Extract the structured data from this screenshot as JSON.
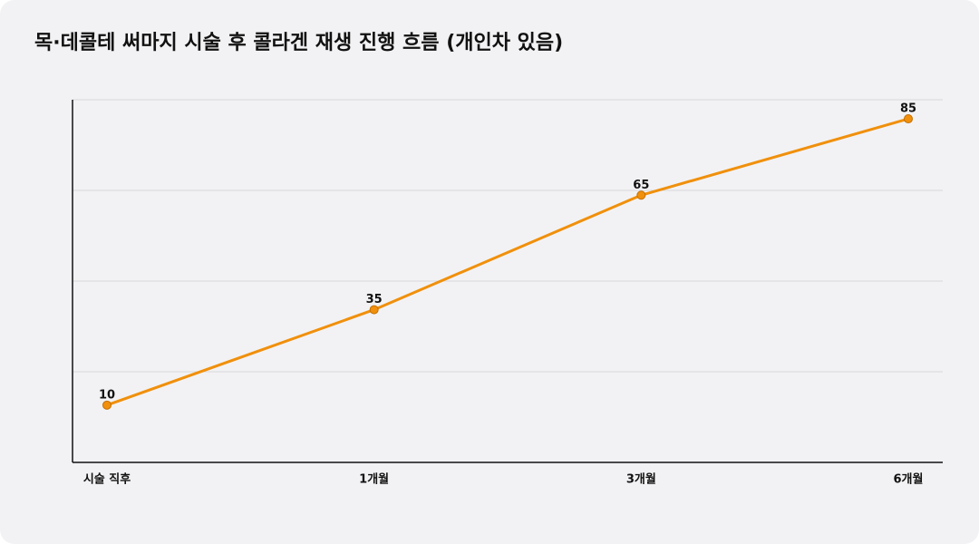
{
  "chart_data": {
    "type": "line",
    "title": "목·데콜테 써마지 시술 후 콜라겐 재생 진행 흐름 (개인차 있음)",
    "categories": [
      "시술 직후",
      "1개월",
      "3개월",
      "6개월"
    ],
    "series": [
      {
        "name": "콜라겐 재생",
        "color": "#f0900c",
        "values": [
          10,
          35,
          65,
          85
        ]
      }
    ],
    "ylim": [
      -5,
      90
    ],
    "yticks": [
      18.75,
      42.5,
      66.25,
      90
    ],
    "ytick_labels": false,
    "grid": true,
    "data_labels": true,
    "legend": false
  }
}
